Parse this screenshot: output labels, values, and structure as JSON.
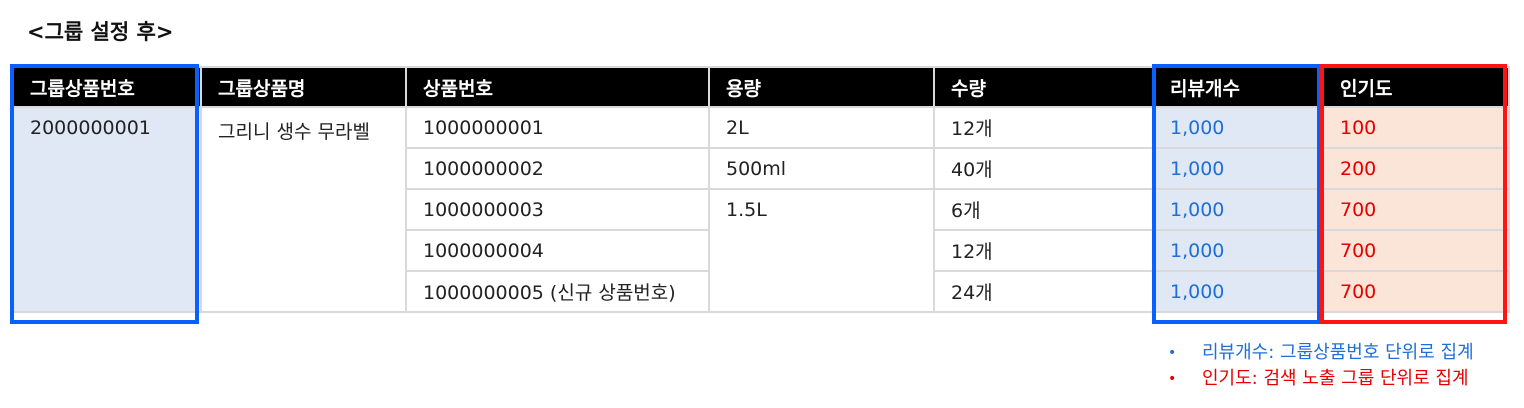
{
  "title": "<그룹 설정 후>",
  "table": {
    "headers": [
      "그룹상품번호",
      "그룹상품명",
      "상품번호",
      "용량",
      "수량",
      "리뷰개수",
      "인기도"
    ],
    "group_number": "2000000001",
    "group_name": "그리니 생수 무라벨",
    "rows": [
      {
        "product_number": "1000000001",
        "volume": "2L",
        "quantity": "12개",
        "review_count": "1,000",
        "popularity": "100"
      },
      {
        "product_number": "1000000002",
        "volume": "500ml",
        "quantity": "40개",
        "review_count": "1,000",
        "popularity": "200"
      },
      {
        "product_number": "1000000003",
        "volume": "1.5L",
        "quantity": "6개",
        "review_count": "1,000",
        "popularity": "700"
      },
      {
        "product_number": "1000000004",
        "volume": "",
        "quantity": "12개",
        "review_count": "1,000",
        "popularity": "700"
      },
      {
        "product_number": "1000000005 (신규 상품번호)",
        "volume": "",
        "quantity": "24개",
        "review_count": "1,000",
        "popularity": "700"
      }
    ]
  },
  "notes": [
    {
      "bullet": "•",
      "text": "리뷰개수: 그룹상품번호 단위로 집계",
      "color": "#1f6fd6"
    },
    {
      "bullet": "•",
      "text": "인기도: 검색 노출 그룹 단위로 집계",
      "color": "#e60000"
    }
  ],
  "colors": {
    "header_bg": "#000000",
    "highlight_blue": "#0a5fff",
    "highlight_red": "#ff1414",
    "blue_fill": "#dfe8f4",
    "red_fill": "#fbe4d8"
  }
}
